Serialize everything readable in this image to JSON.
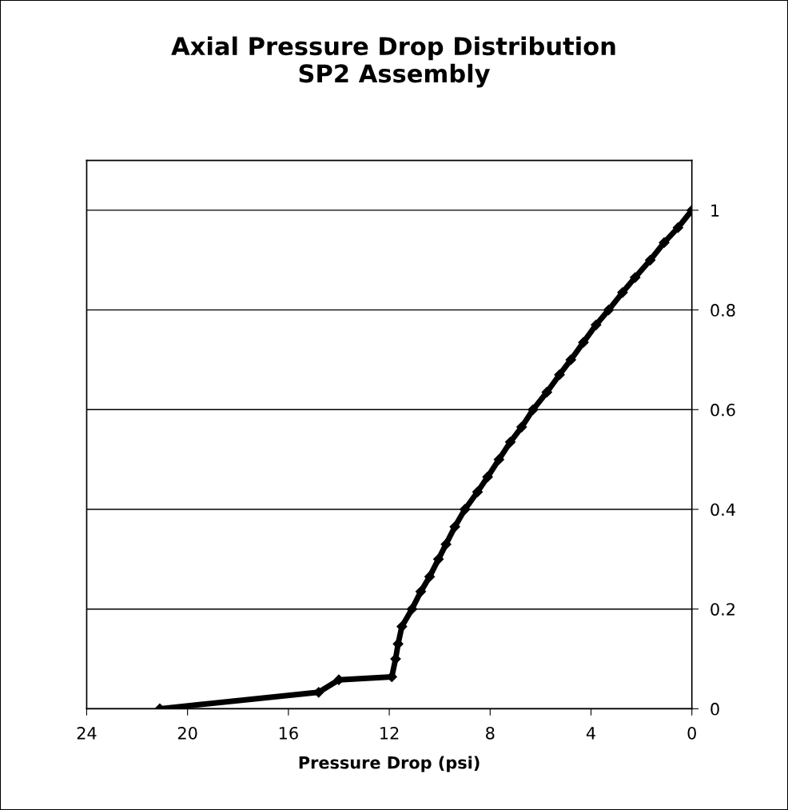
{
  "chart_data": {
    "type": "line",
    "title": "Axial Pressure Drop Distribution\nSP2 Assembly",
    "xlabel": "Pressure Drop (psi)",
    "x": [
      21.1,
      14.8,
      14.0,
      11.9,
      11.75,
      11.65,
      11.5,
      11.1,
      10.75,
      10.4,
      10.05,
      9.75,
      9.4,
      9.0,
      8.5,
      8.1,
      7.65,
      7.2,
      6.75,
      6.3,
      5.75,
      5.25,
      4.8,
      4.3,
      3.8,
      3.3,
      2.75,
      2.25,
      1.65,
      1.1,
      0.55,
      0
    ],
    "series": [
      {
        "color": "#000000",
        "values": [
          0,
          0.033,
          0.058,
          0.064,
          0.1,
          0.13,
          0.165,
          0.2,
          0.235,
          0.265,
          0.3,
          0.33,
          0.365,
          0.4,
          0.435,
          0.465,
          0.5,
          0.535,
          0.565,
          0.6,
          0.635,
          0.67,
          0.7,
          0.735,
          0.77,
          0.8,
          0.835,
          0.865,
          0.9,
          0.935,
          0.965,
          1
        ]
      }
    ],
    "xlim": [
      24,
      0
    ],
    "xticks": [
      24,
      20,
      16,
      12,
      8,
      4,
      0
    ],
    "ylim": [
      0,
      1.1
    ],
    "yticks": [
      0,
      0.2,
      0.4,
      0.6,
      0.8,
      1
    ],
    "grid": "y",
    "marker": "diamond",
    "line_style": "solid",
    "legend": false
  }
}
